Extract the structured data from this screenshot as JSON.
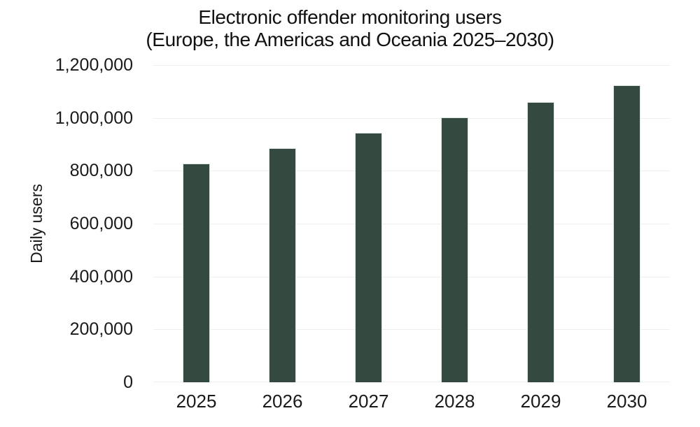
{
  "page": {
    "background": "#ffffff"
  },
  "chart_data": {
    "type": "bar",
    "title_line1": "Electronic offender monitoring users",
    "title_line2": "(Europe, the Americas and Oceania 2025–2030)",
    "ylabel": "Daily users",
    "xlabel": "",
    "categories": [
      "2025",
      "2026",
      "2027",
      "2028",
      "2029",
      "2030"
    ],
    "values": [
      827000,
      885000,
      945000,
      1002000,
      1061000,
      1124000
    ],
    "ylim": [
      0,
      1200000
    ],
    "y_ticks": [
      {
        "label": "1,200,000",
        "value": 1200000
      },
      {
        "label": "1,000,000",
        "value": 1000000
      },
      {
        "label": "800,000",
        "value": 800000
      },
      {
        "label": "600,000",
        "value": 600000
      },
      {
        "label": "400,000",
        "value": 400000
      },
      {
        "label": "200,000",
        "value": 200000
      },
      {
        "label": "0",
        "value": 0
      }
    ],
    "grid": true,
    "legend": "none",
    "colors": {
      "bar_fill": "#344a41",
      "bar_border": "#dde6e1",
      "grid_line": "#efefef",
      "text": "#1a1a1a"
    }
  }
}
